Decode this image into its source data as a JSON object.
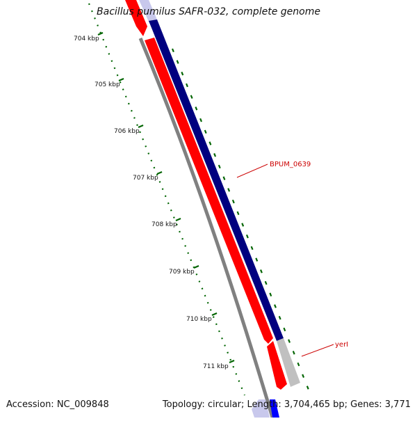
{
  "title": "Bacillus pumilus SAFR-032, complete genome",
  "footer": {
    "accession": "Accession: NC_009848",
    "summary": "Topology: circular; Length: 3,704,465 bp; Genes: 3,771"
  },
  "ruler": {
    "tick_labels": [
      "704 kbp",
      "705 kbp",
      "706 kbp",
      "707 kbp",
      "708 kbp",
      "709 kbp",
      "710 kbp",
      "711 kbp"
    ],
    "color": "#006400"
  },
  "features": {
    "gene_labels": [
      "BPUM_0639",
      "yerI"
    ],
    "label_color": "#cc0000"
  },
  "colors": {
    "forward_strand": "#ff0000",
    "reverse_strand": "#00007f",
    "other_gene": "#c0c0c0",
    "backbone": "#808080"
  }
}
